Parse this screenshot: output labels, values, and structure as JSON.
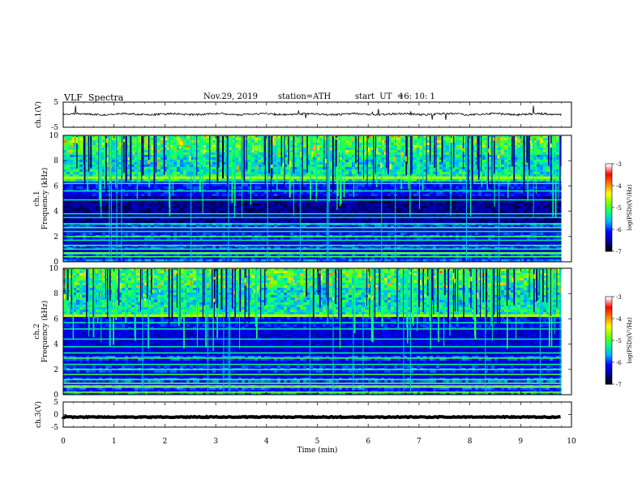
{
  "header": {
    "title": "VLF  Spectra",
    "date": "Nov.29, 2019",
    "station": "station=ATH",
    "start_ut_label": "start  UT  =",
    "start_ut_value": "16: 10: 1"
  },
  "chart_data": [
    {
      "type": "line",
      "name": "ch1-waveform",
      "ylabel": "ch.1(V)",
      "ylim": [
        -5,
        5
      ],
      "y_ticks": [
        "5",
        "-5"
      ],
      "baseline_v": 0.2,
      "xlim": [
        0,
        10
      ],
      "data_end_min": 9.8
    },
    {
      "type": "heatmap",
      "name": "ch1-spectrogram",
      "ylabel_channel": "ch.1",
      "ylabel": "Frequency (kHz)",
      "ylim": [
        0,
        10
      ],
      "y_ticks": [
        "0",
        "2",
        "4",
        "6",
        "8",
        "10"
      ],
      "xlim": [
        0,
        10
      ],
      "data_end_min": 9.8,
      "colorbar": {
        "label": "log(PSD)(V²/Hz)",
        "range": [
          -7,
          -3
        ],
        "ticks": [
          "-3",
          "-4",
          "-5",
          "-6",
          "-7"
        ]
      }
    },
    {
      "type": "heatmap",
      "name": "ch2-spectrogram",
      "ylabel_channel": "ch.2",
      "ylabel": "Frequency (kHz)",
      "ylim": [
        0,
        10
      ],
      "y_ticks": [
        "0",
        "2",
        "4",
        "6",
        "8",
        "10"
      ],
      "xlim": [
        0,
        10
      ],
      "data_end_min": 9.8,
      "colorbar": {
        "label": "log(PSD)(V²/Hz)",
        "range": [
          -7,
          -3
        ],
        "ticks": [
          "-3",
          "-4",
          "-5",
          "-6",
          "-7"
        ]
      }
    },
    {
      "type": "line",
      "name": "ch3-waveform",
      "ylabel": "ch.3(V)",
      "ylim": [
        -5,
        5
      ],
      "y_ticks": [
        "5",
        "0",
        "-5"
      ],
      "baseline_v": -1,
      "xlim": [
        0,
        10
      ],
      "data_end_min": 9.8
    }
  ],
  "x_axis": {
    "label": "Time  (min)",
    "ticks": [
      "0",
      "1",
      "2",
      "3",
      "4",
      "5",
      "6",
      "7",
      "8",
      "9",
      "10"
    ]
  },
  "colorscale": [
    "#000000",
    "#0000a0",
    "#0000ff",
    "#00b0ff",
    "#00ff80",
    "#7cff00",
    "#ffff00",
    "#ff8000",
    "#ff0000",
    "#ffffff"
  ]
}
